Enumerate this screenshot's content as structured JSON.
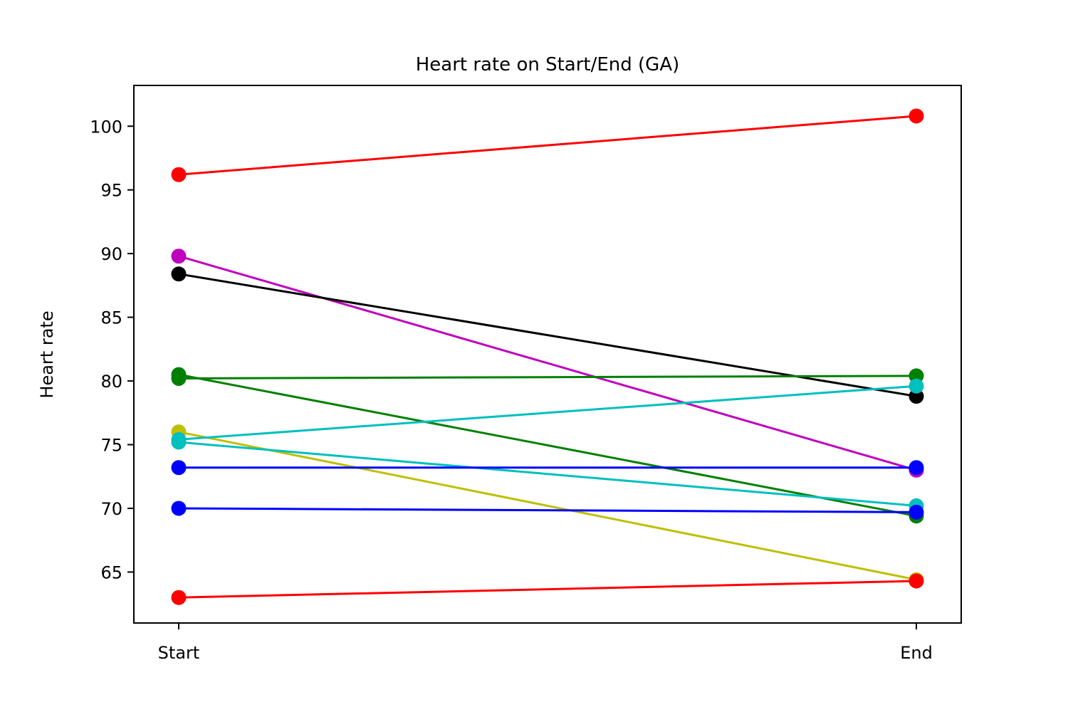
{
  "chart_data": {
    "type": "line",
    "title": "Heart rate on Start/End (GA)",
    "xlabel": "",
    "ylabel": "Heart rate",
    "categories": [
      "Start",
      "End"
    ],
    "ylim": [
      61,
      103.2
    ],
    "yticks": [
      65,
      70,
      75,
      80,
      85,
      90,
      95,
      100
    ],
    "grid": false,
    "legend": "none",
    "series": [
      {
        "color": "#ff0000",
        "values": [
          96.2,
          100.8
        ]
      },
      {
        "color": "#bf00bf",
        "values": [
          89.8,
          73.0
        ]
      },
      {
        "color": "#000000",
        "values": [
          88.4,
          78.8
        ]
      },
      {
        "color": "#008000",
        "values": [
          80.5,
          69.4
        ]
      },
      {
        "color": "#008000",
        "values": [
          80.2,
          80.4
        ]
      },
      {
        "color": "#bfbf00",
        "values": [
          76.0,
          64.4
        ]
      },
      {
        "color": "#00bfbf",
        "values": [
          75.4,
          79.6
        ]
      },
      {
        "color": "#00bfbf",
        "values": [
          75.2,
          70.2
        ]
      },
      {
        "color": "#0000ff",
        "values": [
          73.2,
          73.2
        ]
      },
      {
        "color": "#0000ff",
        "values": [
          70.0,
          69.7
        ]
      },
      {
        "color": "#ff0000",
        "values": [
          63.0,
          64.3
        ]
      }
    ]
  }
}
